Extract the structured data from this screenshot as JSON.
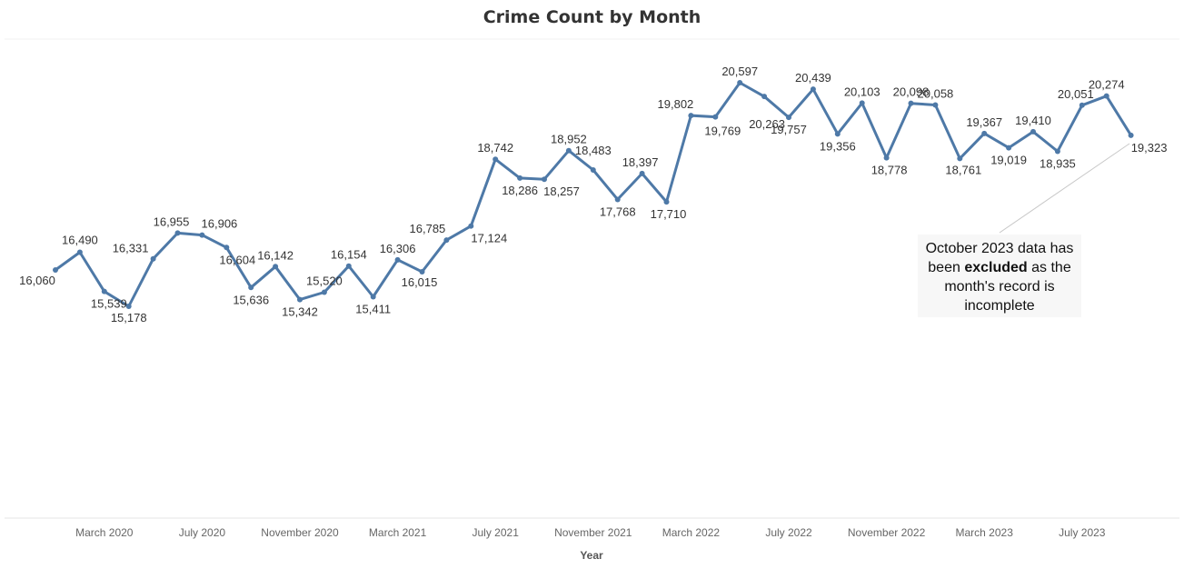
{
  "chart_data": {
    "type": "line",
    "title": "Crime Count by Month",
    "xlabel": "Year",
    "ylabel": "",
    "x_tick_labels": [
      "March 2020",
      "July 2020",
      "November 2020",
      "March 2021",
      "July 2021",
      "November 2021",
      "March 2022",
      "July 2022",
      "November 2022",
      "March 2023",
      "July 2023"
    ],
    "x": [
      "2020-01",
      "2020-02",
      "2020-03",
      "2020-04",
      "2020-05",
      "2020-06",
      "2020-07",
      "2020-08",
      "2020-09",
      "2020-10",
      "2020-11",
      "2020-12",
      "2021-01",
      "2021-02",
      "2021-03",
      "2021-04",
      "2021-05",
      "2021-06",
      "2021-07",
      "2021-08",
      "2021-09",
      "2021-10",
      "2021-11",
      "2021-12",
      "2022-01",
      "2022-02",
      "2022-03",
      "2022-04",
      "2022-05",
      "2022-06",
      "2022-07",
      "2022-08",
      "2022-09",
      "2022-10",
      "2022-11",
      "2022-12",
      "2023-01",
      "2023-02",
      "2023-03",
      "2023-04",
      "2023-05",
      "2023-06",
      "2023-07",
      "2023-08",
      "2023-09"
    ],
    "series": [
      {
        "name": "",
        "color": "#4e79a7",
        "values": [
          16060,
          16490,
          15539,
          15178,
          16331,
          16955,
          16906,
          16604,
          15636,
          16142,
          15342,
          15520,
          16154,
          15411,
          16306,
          16015,
          16785,
          17124,
          18742,
          18286,
          18257,
          18952,
          18483,
          17768,
          18397,
          17710,
          19802,
          19769,
          20597,
          20263,
          19757,
          20439,
          19356,
          20103,
          18778,
          20098,
          20058,
          18761,
          19367,
          19019,
          19410,
          18935,
          20051,
          20274,
          19323
        ],
        "labels": [
          "16,060",
          "16,490",
          "15,539",
          "15,178",
          "16,331",
          "16,955",
          "16,906",
          "16,604",
          "15,636",
          "16,142",
          "15,342",
          "15,520",
          "16,154",
          "15,411",
          "16,306",
          "16,015",
          "16,785",
          "17,124",
          "18,742",
          "18,286",
          "18,257",
          "18,952",
          "18,483",
          "17,768",
          "18,397",
          "17,710",
          "19,802",
          "19,769",
          "20,597",
          "20,263",
          "19,757",
          "20,439",
          "19,356",
          "20,103",
          "18,778",
          "20,098",
          "20,058",
          "18,761",
          "19,367",
          "19,019",
          "19,410",
          "18,935",
          "20,051",
          "20,274",
          "19,323"
        ]
      }
    ],
    "grid": false,
    "annotation": {
      "line1": "October 2023 data has",
      "line2_pre": "been ",
      "line2_bold": "excluded",
      "line2_post": " as the",
      "line3": "month's record is",
      "line4": "incomplete"
    }
  }
}
